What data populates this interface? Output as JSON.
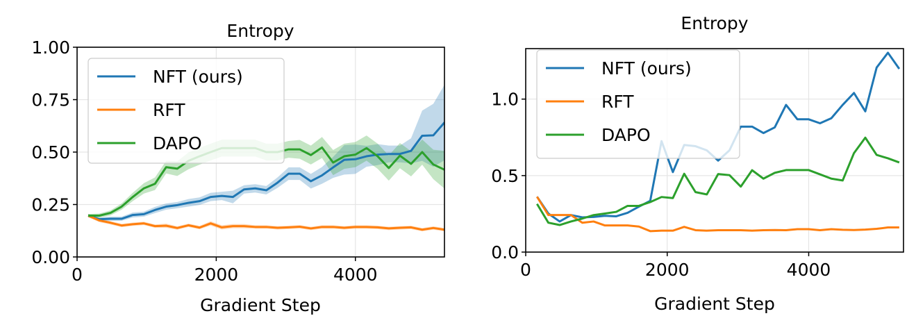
{
  "colors": {
    "NFT (ours)": "#1f77b4",
    "RFT": "#ff7f0e",
    "DAPO": "#2ca02c"
  },
  "chart_data": [
    {
      "type": "line",
      "title": "Entropy",
      "xlabel": "Gradient Step",
      "ylabel": "",
      "xlim": [
        0,
        5280
      ],
      "ylim": [
        0,
        1.0
      ],
      "xticks": [
        "0",
        "2000",
        "4000"
      ],
      "yticks": [
        "0.00",
        "0.25",
        "0.50",
        "0.75",
        "1.00"
      ],
      "grid": true,
      "legend": "upper-left",
      "shaded_bands": true,
      "x": [
        160,
        320,
        480,
        640,
        800,
        960,
        1120,
        1280,
        1440,
        1600,
        1760,
        1920,
        2080,
        2240,
        2400,
        2560,
        2720,
        2880,
        3040,
        3200,
        3360,
        3520,
        3680,
        3840,
        4000,
        4160,
        4320,
        4480,
        4640,
        4800,
        4960,
        5120,
        5280
      ],
      "series": [
        {
          "name": "NFT (ours)",
          "values": [
            0.197,
            0.18,
            0.182,
            0.182,
            0.2,
            0.204,
            0.224,
            0.24,
            0.247,
            0.258,
            0.266,
            0.286,
            0.291,
            0.286,
            0.322,
            0.327,
            0.318,
            0.354,
            0.397,
            0.397,
            0.361,
            0.389,
            0.427,
            0.463,
            0.466,
            0.48,
            0.488,
            0.491,
            0.491,
            0.506,
            0.578,
            0.58,
            0.641
          ],
          "band": [
            0.008,
            0.008,
            0.01,
            0.01,
            0.012,
            0.012,
            0.015,
            0.015,
            0.015,
            0.018,
            0.018,
            0.02,
            0.02,
            0.03,
            0.02,
            0.02,
            0.02,
            0.025,
            0.03,
            0.03,
            0.035,
            0.04,
            0.05,
            0.07,
            0.07,
            0.05,
            0.05,
            0.04,
            0.04,
            0.06,
            0.12,
            0.15,
            0.18
          ]
        },
        {
          "name": "RFT",
          "values": [
            0.197,
            0.174,
            0.163,
            0.15,
            0.156,
            0.16,
            0.147,
            0.149,
            0.138,
            0.151,
            0.14,
            0.16,
            0.141,
            0.147,
            0.147,
            0.143,
            0.143,
            0.139,
            0.141,
            0.144,
            0.136,
            0.143,
            0.143,
            0.139,
            0.143,
            0.143,
            0.141,
            0.136,
            0.139,
            0.141,
            0.13,
            0.138,
            0.13
          ],
          "band": [
            0.008,
            0.008,
            0.008,
            0.008,
            0.008,
            0.008,
            0.008,
            0.01,
            0.008,
            0.008,
            0.008,
            0.01,
            0.01,
            0.01,
            0.01,
            0.008,
            0.008,
            0.008,
            0.008,
            0.008,
            0.008,
            0.008,
            0.008,
            0.008,
            0.008,
            0.008,
            0.008,
            0.008,
            0.008,
            0.008,
            0.008,
            0.008,
            0.008
          ]
        },
        {
          "name": "DAPO",
          "values": [
            0.197,
            0.197,
            0.21,
            0.24,
            0.286,
            0.327,
            0.349,
            0.428,
            0.421,
            0.458,
            0.48,
            0.5,
            0.519,
            0.519,
            0.519,
            0.519,
            0.5,
            0.5,
            0.513,
            0.513,
            0.486,
            0.522,
            0.45,
            0.48,
            0.488,
            0.519,
            0.48,
            0.424,
            0.483,
            0.444,
            0.5,
            0.441,
            0.416
          ],
          "band": [
            0.008,
            0.01,
            0.012,
            0.015,
            0.02,
            0.025,
            0.03,
            0.03,
            0.035,
            0.04,
            0.04,
            0.04,
            0.04,
            0.04,
            0.04,
            0.04,
            0.04,
            0.04,
            0.04,
            0.045,
            0.045,
            0.05,
            0.06,
            0.06,
            0.06,
            0.06,
            0.06,
            0.06,
            0.06,
            0.06,
            0.06,
            0.07,
            0.09
          ]
        }
      ]
    },
    {
      "type": "line",
      "title": "Entropy",
      "xlabel": "Gradient Step",
      "ylabel": "",
      "xlim": [
        0,
        5340
      ],
      "ylim": [
        0,
        1.33
      ],
      "xticks": [
        "0",
        "2000",
        "4000"
      ],
      "yticks": [
        "0.0",
        "0.5",
        "1.0"
      ],
      "grid": true,
      "legend": "upper-left",
      "x": [
        160,
        320,
        480,
        640,
        800,
        960,
        1120,
        1280,
        1440,
        1600,
        1760,
        1920,
        2080,
        2240,
        2400,
        2560,
        2720,
        2880,
        3040,
        3200,
        3360,
        3520,
        3680,
        3840,
        4000,
        4160,
        4320,
        4480,
        4640,
        4800,
        4960,
        5120,
        5280
      ],
      "series": [
        {
          "name": "NFT (ours)",
          "values": [
            0.362,
            0.252,
            0.2,
            0.242,
            0.227,
            0.23,
            0.237,
            0.234,
            0.257,
            0.297,
            0.335,
            0.725,
            0.523,
            0.7,
            0.692,
            0.665,
            0.598,
            0.665,
            0.82,
            0.82,
            0.778,
            0.815,
            0.962,
            0.868,
            0.868,
            0.842,
            0.875,
            0.962,
            1.04,
            0.92,
            1.206,
            1.303,
            1.198
          ]
        },
        {
          "name": "RFT",
          "values": [
            0.362,
            0.242,
            0.242,
            0.242,
            0.192,
            0.2,
            0.174,
            0.174,
            0.174,
            0.167,
            0.137,
            0.14,
            0.14,
            0.165,
            0.143,
            0.14,
            0.143,
            0.143,
            0.143,
            0.14,
            0.143,
            0.144,
            0.143,
            0.15,
            0.15,
            0.143,
            0.15,
            0.146,
            0.144,
            0.147,
            0.152,
            0.161,
            0.161
          ]
        },
        {
          "name": "DAPO",
          "values": [
            0.315,
            0.192,
            0.177,
            0.2,
            0.219,
            0.242,
            0.252,
            0.263,
            0.302,
            0.302,
            0.327,
            0.36,
            0.353,
            0.512,
            0.392,
            0.377,
            0.51,
            0.503,
            0.428,
            0.535,
            0.48,
            0.518,
            0.536,
            0.536,
            0.536,
            0.508,
            0.48,
            0.468,
            0.647,
            0.748,
            0.635,
            0.613,
            0.586
          ]
        }
      ]
    }
  ]
}
